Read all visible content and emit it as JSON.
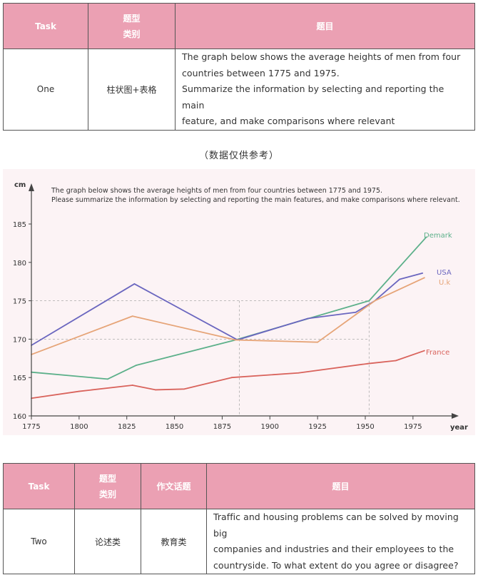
{
  "table1": {
    "headers": [
      "Task",
      "题型\n类别",
      "题目"
    ],
    "row": {
      "task": "One",
      "type": "柱状图+表格",
      "question_lines": [
        "The graph below shows the average heights of men from four",
        "countries between 1775 and 1975.",
        "Summarize the information by selecting and reporting the main",
        "feature, and make comparisons where relevant"
      ]
    }
  },
  "note": "（数据仅供参考）",
  "chart_data": {
    "type": "line",
    "ylabel": "cm",
    "xlabel": "year",
    "caption_lines": [
      "The graph below shows the average heights of men from four countries between 1775 and 1975.",
      "Please summarize the information by selecting and reporting the main features, and make comparisons where relevant."
    ],
    "x_ticks": [
      1775,
      1800,
      1825,
      1850,
      1875,
      1900,
      1925,
      1950,
      1975
    ],
    "y_ticks": [
      160,
      165,
      170,
      175,
      180,
      185
    ],
    "xlim": [
      1775,
      1990
    ],
    "ylim": [
      160,
      188
    ],
    "grid": false,
    "reference_lines": [
      {
        "axis": "y",
        "value": 175
      },
      {
        "axis": "y",
        "value": 170
      },
      {
        "axis": "x",
        "value": 1884
      },
      {
        "axis": "x",
        "value": 1952
      }
    ],
    "series": [
      {
        "name": "Demark",
        "color": "#5cb08a",
        "x": [
          1775,
          1815,
          1830,
          1882,
          1952,
          1982
        ],
        "y": [
          165.7,
          164.8,
          166.6,
          169.9,
          175,
          183.3
        ]
      },
      {
        "name": "USA",
        "color": "#6a66bf",
        "x": [
          1775,
          1829,
          1883,
          1920,
          1945,
          1955,
          1968,
          1980
        ],
        "y": [
          169.2,
          177.2,
          169.9,
          172.7,
          173.5,
          175,
          177.8,
          178.6
        ]
      },
      {
        "name": "U.k",
        "color": "#e6a477",
        "x": [
          1775,
          1828,
          1882,
          1925,
          1955,
          1981
        ],
        "y": [
          168,
          173,
          169.9,
          169.6,
          175,
          178
        ]
      },
      {
        "name": "France",
        "color": "#d9635c",
        "x": [
          1775,
          1800,
          1828,
          1840,
          1855,
          1880,
          1915,
          1951,
          1966,
          1981
        ],
        "y": [
          162.3,
          163.2,
          164,
          163.4,
          163.5,
          165,
          165.6,
          166.8,
          167.2,
          168.5
        ]
      }
    ]
  },
  "table2": {
    "headers": [
      "Task",
      "题型\n类别",
      "作文话题",
      "题目"
    ],
    "row": {
      "task": "Two",
      "type": "论述类",
      "topic": "教育类",
      "question_lines": [
        "Traffic and housing problems can be solved by   moving big",
        "companies and industries and their employees to the",
        "countryside.   To what extent do you agree or disagree?"
      ]
    }
  }
}
